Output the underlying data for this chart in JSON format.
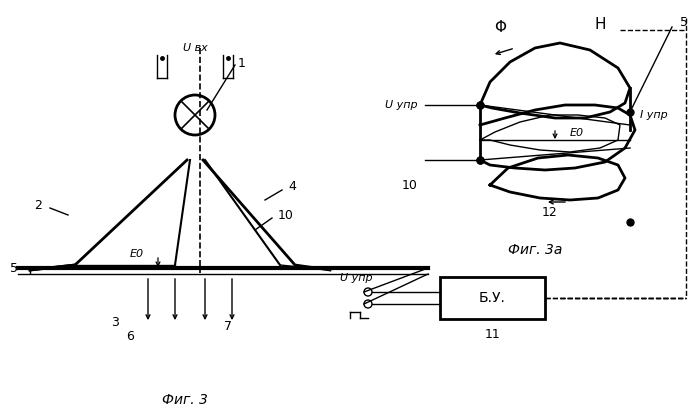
{
  "fig3_label": "Фиг. 3",
  "fig3a_label": "Фиг. 3а",
  "bg_color": "#ffffff",
  "label_1": "1",
  "label_2": "2",
  "label_3": "3",
  "label_4": "4",
  "label_5": "5",
  "label_6": "6",
  "label_7": "7",
  "label_10_left": "10",
  "label_10_right": "10",
  "label_11": "11",
  "label_12": "12",
  "label_Uvx": "U вх",
  "label_Uupr_top": "U упр",
  "label_Uupr_bot": "U упр",
  "label_Iupr": "I упр",
  "label_E0_left": "E0",
  "label_E0_right": "E0",
  "label_F": "Φ",
  "label_H": "H",
  "label_BU": "Б.У."
}
